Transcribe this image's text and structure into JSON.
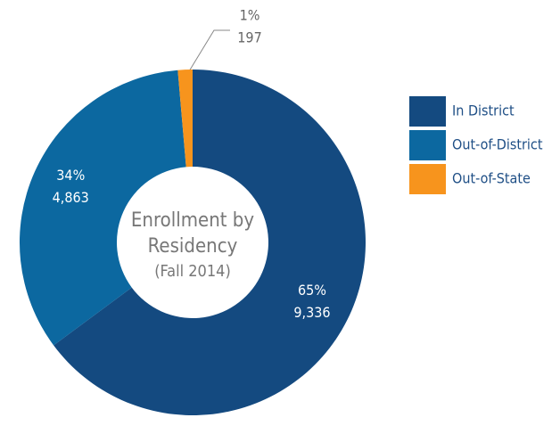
{
  "chart_data": {
    "type": "donut",
    "title_lines": [
      "Enrollment by",
      "Residency"
    ],
    "subtitle": "(Fall 2014)",
    "categories": [
      "In District",
      "Out-of-District",
      "Out-of-State"
    ],
    "values": [
      9336,
      4863,
      197
    ],
    "value_labels": [
      "9,336",
      "4,863",
      "197"
    ],
    "percent_labels": [
      "65%",
      "34%",
      "1%"
    ],
    "colors": [
      "#144a80",
      "#0c68a0",
      "#f7941d"
    ],
    "legend": "right"
  }
}
